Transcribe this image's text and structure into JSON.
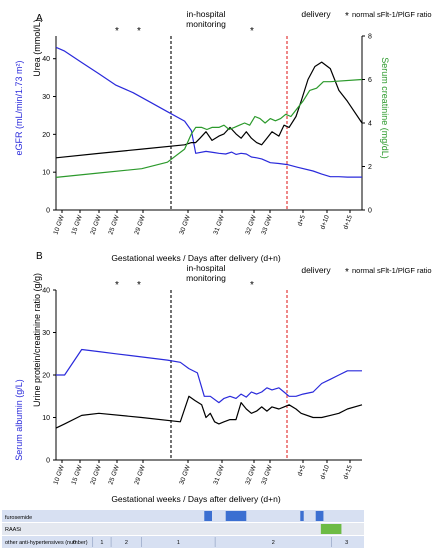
{
  "chart_data": [
    {
      "type": "line",
      "panel_label": "A",
      "x_categories": [
        "10 GW",
        "15 GW",
        "20 GW",
        "25 GW",
        "29 GW",
        "30 GW",
        "31 GW",
        "32 GW",
        "33 GW",
        "d+5",
        "d+10",
        "d+15"
      ],
      "annotations": {
        "monitoring": "in-hospital monitoring",
        "delivery": "delivery",
        "legend": "normal sFlt-1/PlGF ratio",
        "star": "*"
      },
      "star_x": [
        "25 GW",
        "29 GW",
        "31 GW"
      ],
      "xlabel": "Gestational weeks / Days after delivery (d+n)",
      "ylabel_left": "eGFR (mL/min/1.73 m²)",
      "ylabel_right_top": "Urea (mmol/L)",
      "ylabel_right": "Serum creatinine (mg/dL)",
      "yticks_left": [
        "0",
        "10",
        "20",
        "30",
        "40"
      ],
      "yticks_right": [
        "0",
        "2",
        "4",
        "6",
        "8"
      ],
      "ylim_left": [
        0,
        46
      ],
      "ylim_right": [
        0,
        8
      ],
      "series": [
        {
          "color": "#2a2adb",
          "axis": "left",
          "x": [
            10,
            11,
            13,
            15,
            17,
            19,
            21,
            23,
            25,
            25.8,
            26.3,
            27.5,
            28.4,
            29,
            29.8,
            30.5,
            31,
            31.6,
            32.2,
            32.8,
            33.4,
            34,
            34.5,
            35,
            36,
            37,
            38.2,
            40,
            41,
            42,
            43,
            44,
            45,
            45.7
          ],
          "y": [
            43,
            42,
            39,
            36,
            33,
            31,
            28.5,
            26,
            23.5,
            21,
            15,
            15.5,
            15.2,
            15,
            14.8,
            15.3,
            14.7,
            15,
            14.8,
            14,
            13.8,
            13.5,
            13,
            12.5,
            12.3,
            12,
            11.3,
            10.3,
            9.5,
            8.8,
            8.8,
            8.7,
            8.7,
            8.7
          ]
        },
        {
          "color": "#000000",
          "axis": "right",
          "x": [
            10,
            15,
            20,
            25,
            25.8,
            26.3,
            26.8,
            27.5,
            28.2,
            29,
            29.6,
            30.3,
            31,
            31.6,
            32.2,
            32.8,
            33.4,
            34,
            34.6,
            35.2,
            36,
            36.6,
            37.2,
            38,
            38.6,
            39.4,
            40.2,
            41,
            42,
            43,
            44,
            45.7
          ],
          "y": [
            2.4,
            2.6,
            2.8,
            3.0,
            3.1,
            3.1,
            3.3,
            3.6,
            3.2,
            3.4,
            3.5,
            3.8,
            3.5,
            3.3,
            3.6,
            3.3,
            3.1,
            3.0,
            3.3,
            3.6,
            3.4,
            3.9,
            3.8,
            4.3,
            5.0,
            6.0,
            6.6,
            6.8,
            6.5,
            5.5,
            5.0,
            4.0
          ]
        },
        {
          "color": "#2c9a2c",
          "axis": "right",
          "x": [
            10,
            15,
            20,
            23,
            25,
            25.8,
            26.3,
            27,
            27.6,
            28.2,
            29,
            29.6,
            30.2,
            30.8,
            31.4,
            32,
            32.6,
            33.2,
            33.8,
            34.4,
            35,
            35.6,
            36.2,
            36.8,
            37.4,
            38,
            38.8,
            39.6,
            40.4,
            41.2,
            42,
            45.7
          ],
          "y": [
            1.5,
            1.7,
            1.9,
            2.2,
            2.8,
            3.5,
            3.8,
            3.8,
            3.7,
            3.8,
            3.8,
            3.9,
            3.7,
            3.8,
            3.9,
            4.0,
            3.9,
            4.3,
            4.2,
            4.0,
            4.2,
            4.1,
            4.2,
            4.4,
            4.3,
            4.6,
            5.0,
            5.5,
            5.6,
            5.9,
            5.9,
            6.0
          ]
        }
      ]
    },
    {
      "type": "line",
      "panel_label": "B",
      "x_categories": [
        "10 GW",
        "15 GW",
        "20 GW",
        "25 GW",
        "29 GW",
        "30 GW",
        "31 GW",
        "32 GW",
        "33 GW",
        "d+5",
        "d+10",
        "d+15"
      ],
      "annotations": {
        "monitoring": "in-hospital monitoring",
        "delivery": "delivery",
        "legend": "normal sFlt-1/PlGF ratio",
        "star": "*"
      },
      "star_x": [
        "25 GW",
        "29 GW",
        "31 GW"
      ],
      "xlabel": "Gestational weeks / Days after delivery (d+n)",
      "ylabel_left": "Serum albumin (g/L)",
      "ylabel_left_top": "Urine protein/creatinine ratio (g/g)",
      "yticks_left": [
        "0",
        "10",
        "20",
        "30",
        "40"
      ],
      "ylim_left": [
        0,
        40
      ],
      "series": [
        {
          "color": "#2a2adb",
          "x": [
            10,
            11,
            13,
            15,
            17,
            19,
            21,
            23,
            24.5,
            25.5,
            26.5,
            27.3,
            28,
            29,
            29.6,
            30.3,
            31,
            31.6,
            32.2,
            32.8,
            33.4,
            34,
            34.6,
            35.2,
            36,
            36.6,
            37.2,
            38,
            38.8,
            40,
            41,
            42,
            43,
            44,
            45.7
          ],
          "y": [
            20,
            20,
            26,
            25.5,
            25,
            24.5,
            24,
            23.5,
            23,
            21.5,
            20.5,
            15,
            15,
            13.5,
            14.5,
            15,
            14.5,
            15.5,
            14.8,
            16,
            15.5,
            16,
            17,
            16.5,
            17,
            16,
            15,
            15,
            15.5,
            16,
            18,
            19,
            20,
            21,
            21
          ]
        },
        {
          "color": "#000000",
          "x": [
            10,
            11,
            13,
            15,
            20,
            24.5,
            25.5,
            26.2,
            27,
            27.5,
            28,
            28.5,
            29,
            29.6,
            30.3,
            31,
            31.6,
            32.2,
            32.8,
            33.4,
            34,
            34.6,
            35.2,
            36,
            36.6,
            37.2,
            38,
            38.6,
            40,
            41,
            42,
            43,
            44,
            45.7
          ],
          "y": [
            7.5,
            8.5,
            10.5,
            11,
            10,
            9,
            15,
            14,
            13,
            10,
            11,
            9,
            8.5,
            9,
            9.5,
            9.5,
            13.5,
            12,
            11,
            11.5,
            12.5,
            11.5,
            12.5,
            12,
            12.5,
            13,
            12,
            11,
            10,
            10,
            10.5,
            11,
            12,
            13
          ]
        }
      ]
    }
  ],
  "medications": [
    {
      "name": "furosemide",
      "color": "#3b6fd1",
      "blocks": [
        [
          27.3,
          28.2
        ],
        [
          29.8,
          32.2
        ],
        [
          38.5,
          38.9
        ],
        [
          40.3,
          41.2
        ]
      ]
    },
    {
      "name": "RAASi",
      "color": "#6dbb45",
      "blocks": [
        [
          40.9,
          43.3
        ]
      ]
    },
    {
      "name": "other anti-hypertensives (number)",
      "segments": [
        {
          "label": "0",
          "from": 0,
          "to": 0.12
        },
        {
          "label": "1",
          "from": 0.12,
          "to": 0.18
        },
        {
          "label": "2",
          "from": 0.18,
          "to": 0.28
        },
        {
          "label": "1",
          "from": 0.28,
          "to": 0.52
        },
        {
          "label": "2",
          "from": 0.52,
          "to": 0.9
        },
        {
          "label": "3",
          "from": 0.9,
          "to": 1.0
        }
      ]
    }
  ]
}
